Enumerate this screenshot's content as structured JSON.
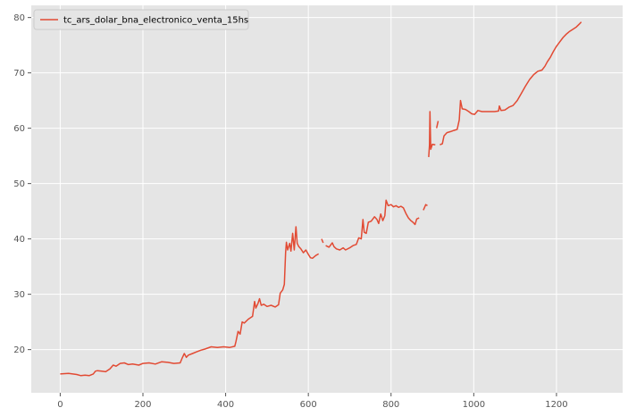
{
  "chart_data": {
    "type": "line",
    "title": "",
    "xlabel": "",
    "ylabel": "",
    "xlim": [
      -70,
      1360
    ],
    "ylim": [
      12.2,
      82.2
    ],
    "xticks": [
      0,
      200,
      400,
      600,
      800,
      1000,
      1200
    ],
    "yticks": [
      20,
      30,
      40,
      50,
      60,
      70,
      80
    ],
    "grid": true,
    "legend_position": "top-left",
    "colors": {
      "line": "#e24a33",
      "background": "#e5e5e5",
      "grid": "#ffffff"
    },
    "series": [
      {
        "name": "tc_ars_dolar_bna_electronico_venta_15hs",
        "segments": [
          [
            [
              0,
              15.6
            ],
            [
              20,
              15.7
            ],
            [
              30,
              15.6
            ],
            [
              40,
              15.5
            ],
            [
              50,
              15.3
            ],
            [
              60,
              15.4
            ],
            [
              70,
              15.3
            ],
            [
              80,
              15.6
            ],
            [
              85,
              16.1
            ],
            [
              90,
              16.2
            ],
            [
              100,
              16.1
            ],
            [
              110,
              16.0
            ],
            [
              120,
              16.5
            ],
            [
              128,
              17.2
            ],
            [
              135,
              17.0
            ],
            [
              145,
              17.5
            ],
            [
              155,
              17.6
            ],
            [
              165,
              17.3
            ],
            [
              175,
              17.4
            ],
            [
              190,
              17.2
            ],
            [
              200,
              17.5
            ],
            [
              215,
              17.6
            ],
            [
              230,
              17.4
            ],
            [
              245,
              17.8
            ],
            [
              260,
              17.7
            ],
            [
              275,
              17.5
            ],
            [
              290,
              17.6
            ],
            [
              295,
              18.5
            ],
            [
              300,
              19.3
            ],
            [
              305,
              18.6
            ],
            [
              310,
              19.0
            ],
            [
              320,
              19.3
            ],
            [
              330,
              19.6
            ],
            [
              340,
              19.9
            ],
            [
              350,
              20.1
            ],
            [
              365,
              20.5
            ],
            [
              380,
              20.4
            ],
            [
              395,
              20.5
            ],
            [
              410,
              20.4
            ],
            [
              422,
              20.6
            ],
            [
              425,
              21.5
            ],
            [
              430,
              23.3
            ],
            [
              435,
              22.8
            ],
            [
              440,
              25.0
            ],
            [
              445,
              24.8
            ],
            [
              455,
              25.5
            ],
            [
              465,
              26.0
            ],
            [
              470,
              28.7
            ],
            [
              473,
              27.5
            ],
            [
              478,
              28.3
            ],
            [
              482,
              29.2
            ],
            [
              486,
              28.0
            ],
            [
              492,
              28.2
            ],
            [
              500,
              27.8
            ],
            [
              510,
              28.0
            ],
            [
              520,
              27.7
            ],
            [
              528,
              28.1
            ],
            [
              532,
              30.2
            ],
            [
              538,
              30.8
            ],
            [
              542,
              31.8
            ],
            [
              545,
              37.5
            ],
            [
              547,
              39.4
            ],
            [
              550,
              38.0
            ],
            [
              555,
              39.2
            ],
            [
              558,
              37.8
            ],
            [
              562,
              41.0
            ],
            [
              566,
              38.0
            ],
            [
              570,
              42.2
            ],
            [
              573,
              39.2
            ],
            [
              577,
              38.6
            ],
            [
              582,
              38.2
            ],
            [
              588,
              37.5
            ],
            [
              594,
              38.0
            ],
            [
              600,
              37.2
            ],
            [
              605,
              36.6
            ],
            [
              610,
              36.5
            ],
            [
              618,
              37.0
            ],
            [
              625,
              37.3
            ]
          ],
          [
            [
              632,
              40.0
            ],
            [
              636,
              39.3
            ]
          ],
          [
            [
              642,
              38.8
            ],
            [
              650,
              38.5
            ],
            [
              658,
              39.3
            ],
            [
              662,
              38.6
            ],
            [
              668,
              38.2
            ],
            [
              676,
              38.0
            ],
            [
              684,
              38.4
            ],
            [
              690,
              38.0
            ],
            [
              700,
              38.4
            ],
            [
              708,
              38.8
            ],
            [
              716,
              39.0
            ],
            [
              722,
              40.2
            ],
            [
              728,
              40.0
            ],
            [
              732,
              43.5
            ],
            [
              735,
              41.2
            ],
            [
              740,
              41.0
            ],
            [
              745,
              43.0
            ],
            [
              752,
              43.2
            ],
            [
              760,
              44.0
            ],
            [
              766,
              43.5
            ],
            [
              770,
              42.8
            ],
            [
              775,
              44.5
            ],
            [
              780,
              43.3
            ],
            [
              785,
              44.2
            ],
            [
              788,
              47.0
            ],
            [
              793,
              46.0
            ],
            [
              800,
              46.2
            ],
            [
              806,
              45.8
            ],
            [
              812,
              46.0
            ],
            [
              818,
              45.7
            ],
            [
              824,
              45.9
            ],
            [
              830,
              45.6
            ],
            [
              836,
              44.6
            ],
            [
              842,
              43.8
            ],
            [
              848,
              43.3
            ],
            [
              853,
              43.0
            ],
            [
              858,
              42.6
            ],
            [
              862,
              43.6
            ],
            [
              868,
              43.8
            ]
          ],
          [
            [
              878,
              45.2
            ],
            [
              884,
              46.2
            ],
            [
              888,
              46.0
            ]
          ],
          [
            [
              891,
              54.8
            ],
            [
              893,
              57.0
            ],
            [
              894,
              63.0
            ],
            [
              896,
              56.2
            ],
            [
              900,
              57.1
            ],
            [
              907,
              57.0
            ]
          ],
          [
            [
              910,
              60.0
            ],
            [
              914,
              61.3
            ]
          ],
          [
            [
              918,
              57.0
            ],
            [
              924,
              57.2
            ],
            [
              928,
              58.6
            ],
            [
              935,
              59.2
            ],
            [
              944,
              59.4
            ],
            [
              952,
              59.6
            ],
            [
              960,
              59.8
            ],
            [
              965,
              61.5
            ],
            [
              968,
              65.0
            ],
            [
              972,
              63.5
            ],
            [
              980,
              63.4
            ],
            [
              988,
              63.0
            ],
            [
              995,
              62.6
            ],
            [
              1002,
              62.5
            ],
            [
              1010,
              63.2
            ],
            [
              1020,
              63.0
            ],
            [
              1035,
              63.0
            ],
            [
              1050,
              63.0
            ],
            [
              1060,
              63.1
            ],
            [
              1062,
              64.0
            ],
            [
              1066,
              63.2
            ],
            [
              1075,
              63.3
            ],
            [
              1085,
              63.8
            ],
            [
              1095,
              64.1
            ],
            [
              1105,
              65.0
            ],
            [
              1115,
              66.3
            ],
            [
              1125,
              67.6
            ],
            [
              1135,
              68.8
            ],
            [
              1145,
              69.7
            ],
            [
              1155,
              70.3
            ],
            [
              1165,
              70.5
            ],
            [
              1172,
              71.2
            ],
            [
              1178,
              72.0
            ],
            [
              1185,
              72.8
            ],
            [
              1192,
              73.8
            ],
            [
              1200,
              74.8
            ],
            [
              1208,
              75.6
            ],
            [
              1216,
              76.4
            ],
            [
              1224,
              77.0
            ],
            [
              1232,
              77.5
            ],
            [
              1240,
              77.9
            ],
            [
              1248,
              78.3
            ],
            [
              1255,
              78.8
            ],
            [
              1260,
              79.2
            ]
          ]
        ]
      }
    ]
  }
}
